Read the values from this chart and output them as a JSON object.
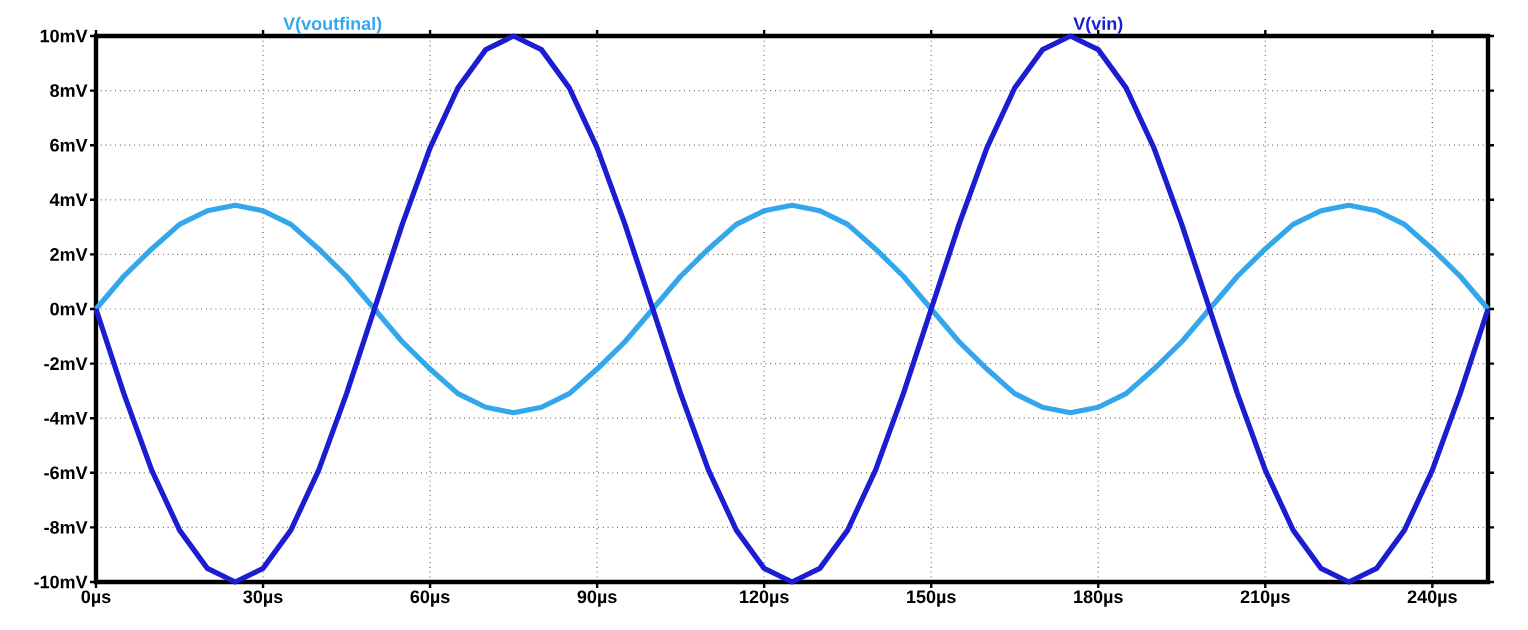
{
  "chart_data": {
    "type": "line",
    "x": [
      0,
      5,
      10,
      15,
      20,
      25,
      30,
      35,
      40,
      45,
      50,
      55,
      60,
      65,
      70,
      75,
      80,
      85,
      90,
      95,
      100,
      105,
      110,
      115,
      120,
      125,
      130,
      135,
      140,
      145,
      150,
      155,
      160,
      165,
      170,
      175,
      180,
      185,
      190,
      195,
      200,
      205,
      210,
      215,
      220,
      225,
      230,
      235,
      240,
      245,
      250
    ],
    "series": [
      {
        "name": "V(voutfinal)",
        "color": "#33a6ec",
        "values": [
          0,
          1.2,
          2.2,
          3.1,
          3.6,
          3.8,
          3.6,
          3.1,
          2.2,
          1.2,
          0,
          -1.2,
          -2.2,
          -3.1,
          -3.6,
          -3.8,
          -3.6,
          -3.1,
          -2.2,
          -1.2,
          0,
          1.2,
          2.2,
          3.1,
          3.6,
          3.8,
          3.6,
          3.1,
          2.2,
          1.2,
          0,
          -1.2,
          -2.2,
          -3.1,
          -3.6,
          -3.8,
          -3.6,
          -3.1,
          -2.2,
          -1.2,
          0,
          1.2,
          2.2,
          3.1,
          3.6,
          3.8,
          3.6,
          3.1,
          2.2,
          1.2,
          0
        ]
      },
      {
        "name": "V(vin)",
        "color": "#1c1cd0",
        "values": [
          0,
          -3.1,
          -5.9,
          -8.1,
          -9.5,
          -10,
          -9.5,
          -8.1,
          -5.9,
          -3.1,
          0,
          3.1,
          5.9,
          8.1,
          9.5,
          10,
          9.5,
          8.1,
          5.9,
          3.1,
          0,
          -3.1,
          -5.9,
          -8.1,
          -9.5,
          -10,
          -9.5,
          -8.1,
          -5.9,
          -3.1,
          0,
          3.1,
          5.9,
          8.1,
          9.5,
          10,
          9.5,
          8.1,
          5.9,
          3.1,
          0,
          -3.1,
          -5.9,
          -8.1,
          -9.5,
          -10,
          -9.5,
          -8.1,
          -5.9,
          -3.1,
          0
        ]
      }
    ],
    "xlim": [
      0,
      250
    ],
    "xticks": [
      {
        "value": 0,
        "label": "0µs"
      },
      {
        "value": 30,
        "label": "30µs"
      },
      {
        "value": 60,
        "label": "60µs"
      },
      {
        "value": 90,
        "label": "90µs"
      },
      {
        "value": 120,
        "label": "120µs"
      },
      {
        "value": 150,
        "label": "150µs"
      },
      {
        "value": 180,
        "label": "180µs"
      },
      {
        "value": 210,
        "label": "210µs"
      },
      {
        "value": 240,
        "label": "240µs"
      }
    ],
    "ylim": [
      -10,
      10
    ],
    "yticks": [
      {
        "value": -10,
        "label": "-10mV"
      },
      {
        "value": -8,
        "label": "-8mV"
      },
      {
        "value": -6,
        "label": "-6mV"
      },
      {
        "value": -4,
        "label": "-4mV"
      },
      {
        "value": -2,
        "label": "-2mV"
      },
      {
        "value": 0,
        "label": "0mV"
      },
      {
        "value": 2,
        "label": "2mV"
      },
      {
        "value": 4,
        "label": "4mV"
      },
      {
        "value": 6,
        "label": "6mV"
      },
      {
        "value": 8,
        "label": "8mV"
      },
      {
        "value": 10,
        "label": "10mV"
      }
    ],
    "grid": true,
    "legend": "top"
  }
}
